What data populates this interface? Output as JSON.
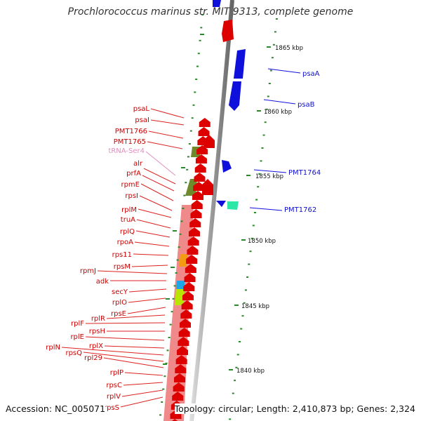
{
  "title": "Prochlorococcus marinus str. MIT 9313, complete genome",
  "accession": "Accession: NC_005071",
  "topology": "Topology: circular; Length: 2,410,873 bp; Genes: 2,324",
  "ticks": [
    "1865 kbp",
    "1860 kbp",
    "1855 kbp",
    "1850 kbp",
    "1845 kbp",
    "1840 kbp"
  ],
  "genes_plus": [
    "psaA",
    "psaB",
    "PMT1764",
    "PMT1762"
  ],
  "genes_minus": [
    "psaL",
    "psaI",
    "PMT1766",
    "PMT1765",
    "tRNA-Ser4",
    "alr",
    "prfA",
    "rpmE",
    "rpsI",
    "rplM",
    "truA",
    "rplQ",
    "rpoA",
    "rps11",
    "rpsM",
    "rpmJ",
    "adk",
    "secY",
    "rplO",
    "rpsE",
    "rplR",
    "rplF",
    "rpsH",
    "rplE",
    "rplX",
    "rplN",
    "rpsQ",
    "rpl29",
    "rplP",
    "rpsC",
    "rplV",
    "rpsS"
  ],
  "colors": {
    "plus_strand": "#0000dd",
    "minus_strand": "#dd0000",
    "trna": "#e08fbf",
    "tick": "#2a8a2a"
  }
}
